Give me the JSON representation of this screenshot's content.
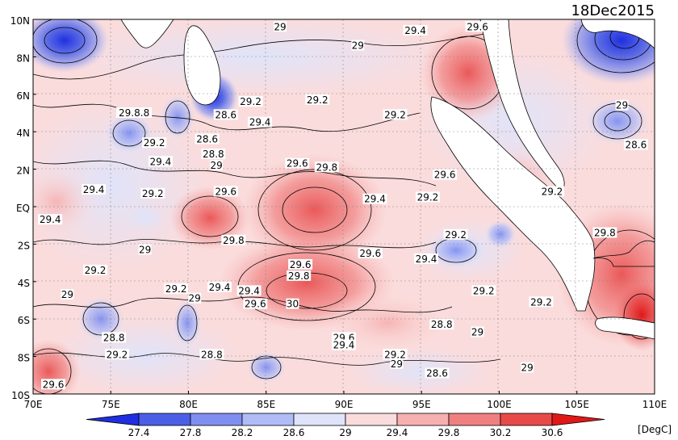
{
  "date": "18Dec2015",
  "units": "[DegC]",
  "lon_labels": [
    "70E",
    "75E",
    "80E",
    "85E",
    "90E",
    "95E",
    "100E",
    "105E",
    "110E"
  ],
  "lat_labels": [
    "10N",
    "8N",
    "6N",
    "4N",
    "2N",
    "EQ",
    "2S",
    "4S",
    "6S",
    "8S",
    "10S"
  ],
  "colorbar_ticks": [
    "27.4",
    "27.8",
    "28.2",
    "28.6",
    "29",
    "29.4",
    "29.8",
    "30.2",
    "30.6"
  ],
  "colorbar_colors": [
    "#1f2fe0",
    "#4a5fe6",
    "#7f8ff0",
    "#b0bcf6",
    "#dfe4fb",
    "#fbdcdc",
    "#f6b0b0",
    "#f08080",
    "#e84a4a",
    "#e01818"
  ],
  "contour_labels": [
    {
      "text": "29",
      "lon": 85.9,
      "lat": 9.6
    },
    {
      "text": "29",
      "lon": 90.9,
      "lat": 8.6
    },
    {
      "text": "29.4",
      "lon": 94.6,
      "lat": 9.4
    },
    {
      "text": "29.6",
      "lon": 98.6,
      "lat": 9.6
    },
    {
      "text": "29.2",
      "lon": 84.0,
      "lat": 5.6
    },
    {
      "text": "29.2",
      "lon": 88.3,
      "lat": 5.7
    },
    {
      "text": "29.2",
      "lon": 93.3,
      "lat": 4.9
    },
    {
      "text": "29",
      "lon": 107.9,
      "lat": 5.4
    },
    {
      "text": "29.8.8",
      "lon": 76.5,
      "lat": 5.0
    },
    {
      "text": "28.6",
      "lon": 82.4,
      "lat": 4.9
    },
    {
      "text": "29.4",
      "lon": 84.6,
      "lat": 4.5
    },
    {
      "text": "28.6",
      "lon": 81.2,
      "lat": 3.6
    },
    {
      "text": "29.2",
      "lon": 77.8,
      "lat": 3.4
    },
    {
      "text": "28.6",
      "lon": 108.8,
      "lat": 3.3
    },
    {
      "text": "28.8",
      "lon": 81.6,
      "lat": 2.8
    },
    {
      "text": "29.4",
      "lon": 78.2,
      "lat": 2.4
    },
    {
      "text": "29",
      "lon": 81.8,
      "lat": 2.2
    },
    {
      "text": "29.6",
      "lon": 87.0,
      "lat": 2.3
    },
    {
      "text": "29.8",
      "lon": 88.9,
      "lat": 2.1
    },
    {
      "text": "29.6",
      "lon": 96.5,
      "lat": 1.7
    },
    {
      "text": "29.4",
      "lon": 73.9,
      "lat": 0.9
    },
    {
      "text": "29.2",
      "lon": 77.7,
      "lat": 0.7
    },
    {
      "text": "29.6",
      "lon": 82.4,
      "lat": 0.8
    },
    {
      "text": "29.4",
      "lon": 92.0,
      "lat": 0.4
    },
    {
      "text": "29.2",
      "lon": 95.4,
      "lat": 0.5
    },
    {
      "text": "29.2",
      "lon": 103.4,
      "lat": 0.8
    },
    {
      "text": "29.4",
      "lon": 71.1,
      "lat": -0.7
    },
    {
      "text": "29.8",
      "lon": 82.9,
      "lat": -1.8
    },
    {
      "text": "29.2",
      "lon": 97.2,
      "lat": -1.5
    },
    {
      "text": "29.8",
      "lon": 106.8,
      "lat": -1.4
    },
    {
      "text": "29",
      "lon": 77.2,
      "lat": -2.3
    },
    {
      "text": "29.6",
      "lon": 91.7,
      "lat": -2.5
    },
    {
      "text": "29.4",
      "lon": 95.3,
      "lat": -2.8
    },
    {
      "text": "29.2",
      "lon": 74.0,
      "lat": -3.4
    },
    {
      "text": "29.6",
      "lon": 87.2,
      "lat": -3.1
    },
    {
      "text": "29.8",
      "lon": 87.1,
      "lat": -3.7
    },
    {
      "text": "29.2",
      "lon": 79.2,
      "lat": -4.4
    },
    {
      "text": "29.4",
      "lon": 82.0,
      "lat": -4.3
    },
    {
      "text": "29.4",
      "lon": 83.9,
      "lat": -4.5
    },
    {
      "text": "29.2",
      "lon": 99.0,
      "lat": -4.5
    },
    {
      "text": "29",
      "lon": 72.2,
      "lat": -4.7
    },
    {
      "text": "29",
      "lon": 80.4,
      "lat": -4.9
    },
    {
      "text": "29.6",
      "lon": 84.3,
      "lat": -5.2
    },
    {
      "text": "30",
      "lon": 86.7,
      "lat": -5.2
    },
    {
      "text": "29.2",
      "lon": 102.7,
      "lat": -5.1
    },
    {
      "text": "28.8",
      "lon": 96.3,
      "lat": -6.3
    },
    {
      "text": "29",
      "lon": 98.6,
      "lat": -6.7
    },
    {
      "text": "28.8",
      "lon": 75.2,
      "lat": -7.0
    },
    {
      "text": "29.6",
      "lon": 90.0,
      "lat": -7.0
    },
    {
      "text": "29.4",
      "lon": 90.0,
      "lat": -7.4
    },
    {
      "text": "29.2",
      "lon": 75.4,
      "lat": -7.9
    },
    {
      "text": "28.8",
      "lon": 81.5,
      "lat": -7.9
    },
    {
      "text": "29.2",
      "lon": 93.3,
      "lat": -7.9
    },
    {
      "text": "29",
      "lon": 93.4,
      "lat": -8.4
    },
    {
      "text": "29",
      "lon": 101.8,
      "lat": -8.6
    },
    {
      "text": "28.6",
      "lon": 96.0,
      "lat": -8.9
    },
    {
      "text": "29.6",
      "lon": 71.3,
      "lat": -9.5
    }
  ]
}
